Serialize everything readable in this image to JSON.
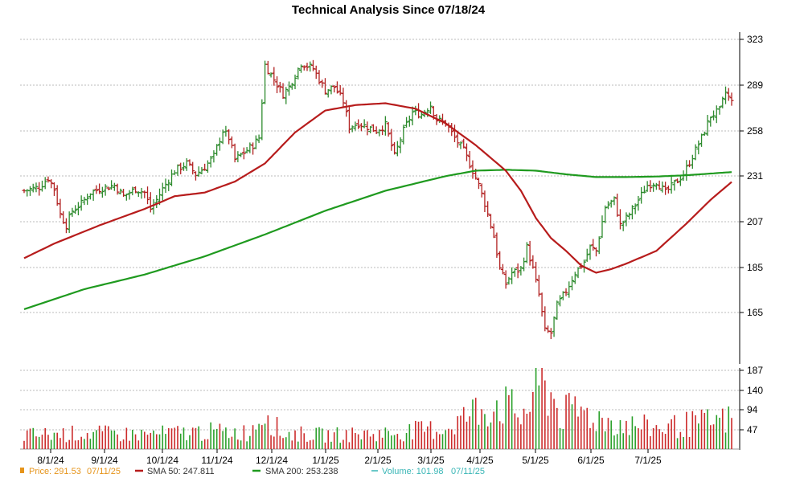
{
  "chart_data": {
    "type": "ohlc",
    "title": "Technical Analysis Since 07/18/24",
    "colors": {
      "up": "#2e8b2e",
      "down": "#b22222",
      "sma50": "#b71c1c",
      "sma200": "#1f9a1f",
      "volume": "#cc2b2b",
      "volume_alt": "#2aa02a",
      "grid": "#bbbbbb",
      "price_legend": "#e6941a",
      "volume_legend": "#39b6b6"
    },
    "price_axis": {
      "ticks": [
        323,
        289,
        258,
        231,
        207,
        185,
        165
      ],
      "ylim": [
        148,
        330
      ]
    },
    "volume_axis": {
      "ticks": [
        187,
        140,
        94,
        47
      ],
      "ylim": [
        0,
        187
      ]
    },
    "x_axis": {
      "tick_labels": [
        "8/1/24",
        "9/1/24",
        "10/1/24",
        "11/1/24",
        "12/1/24",
        "1/1/25",
        "2/1/25",
        "3/1/25",
        "4/1/25",
        "5/1/25",
        "6/1/25",
        "7/1/25"
      ]
    },
    "series": [
      {
        "name": "Price",
        "anchors": [
          [
            0,
            243
          ],
          [
            5,
            245
          ],
          [
            8,
            250
          ],
          [
            10,
            244
          ],
          [
            12,
            230
          ],
          [
            14,
            224
          ],
          [
            16,
            232
          ],
          [
            19,
            236
          ],
          [
            22,
            242
          ],
          [
            25,
            244
          ],
          [
            30,
            246
          ],
          [
            33,
            240
          ],
          [
            37,
            244
          ],
          [
            40,
            242
          ],
          [
            42,
            233
          ],
          [
            44,
            238
          ],
          [
            46,
            244
          ],
          [
            50,
            254
          ],
          [
            54,
            258
          ],
          [
            57,
            252
          ],
          [
            60,
            256
          ],
          [
            63,
            262
          ],
          [
            66,
            276
          ],
          [
            68,
            272
          ],
          [
            70,
            260
          ],
          [
            73,
            264
          ],
          [
            76,
            268
          ],
          [
            78,
            272
          ],
          [
            80,
            312
          ],
          [
            83,
            304
          ],
          [
            86,
            296
          ],
          [
            88,
            300
          ],
          [
            92,
            313
          ],
          [
            96,
            310
          ],
          [
            100,
            298
          ],
          [
            103,
            300
          ],
          [
            106,
            292
          ],
          [
            108,
            278
          ],
          [
            111,
            280
          ],
          [
            114,
            278
          ],
          [
            117,
            276
          ],
          [
            120,
            279
          ],
          [
            123,
            262
          ],
          [
            126,
            276
          ],
          [
            129,
            286
          ],
          [
            132,
            285
          ],
          [
            135,
            290
          ],
          [
            137,
            282
          ],
          [
            140,
            280
          ],
          [
            143,
            272
          ],
          [
            146,
            265
          ],
          [
            149,
            254
          ],
          [
            151,
            246
          ],
          [
            153,
            236
          ],
          [
            156,
            218
          ],
          [
            158,
            200
          ],
          [
            160,
            192
          ],
          [
            162,
            198
          ],
          [
            165,
            200
          ],
          [
            167,
            212
          ],
          [
            169,
            200
          ],
          [
            171,
            186
          ],
          [
            173,
            166
          ],
          [
            175,
            165
          ],
          [
            177,
            180
          ],
          [
            180,
            188
          ],
          [
            183,
            198
          ],
          [
            186,
            204
          ],
          [
            188,
            212
          ],
          [
            190,
            210
          ],
          [
            193,
            234
          ],
          [
            196,
            238
          ],
          [
            198,
            224
          ],
          [
            201,
            230
          ],
          [
            204,
            238
          ],
          [
            207,
            246
          ],
          [
            210,
            248
          ],
          [
            213,
            242
          ],
          [
            216,
            247
          ],
          [
            219,
            252
          ],
          [
            222,
            262
          ],
          [
            225,
            272
          ],
          [
            228,
            284
          ],
          [
            231,
            287
          ],
          [
            233,
            297
          ],
          [
            235,
            291.53
          ]
        ]
      },
      {
        "name": "SMA 50",
        "value": "247.811",
        "anchors": [
          [
            0,
            206
          ],
          [
            10,
            214
          ],
          [
            25,
            224
          ],
          [
            40,
            233
          ],
          [
            50,
            240
          ],
          [
            60,
            242
          ],
          [
            70,
            248
          ],
          [
            80,
            258
          ],
          [
            90,
            275
          ],
          [
            100,
            287
          ],
          [
            110,
            290
          ],
          [
            120,
            291
          ],
          [
            130,
            288
          ],
          [
            140,
            280
          ],
          [
            150,
            268
          ],
          [
            160,
            254
          ],
          [
            165,
            243
          ],
          [
            170,
            228
          ],
          [
            175,
            217
          ],
          [
            180,
            210
          ],
          [
            185,
            202
          ],
          [
            190,
            198
          ],
          [
            195,
            200
          ],
          [
            200,
            203
          ],
          [
            210,
            210
          ],
          [
            220,
            225
          ],
          [
            228,
            238
          ],
          [
            235,
            247.811
          ]
        ]
      },
      {
        "name": "SMA 200",
        "value": "253.238",
        "anchors": [
          [
            0,
            178
          ],
          [
            20,
            189
          ],
          [
            40,
            197
          ],
          [
            60,
            207
          ],
          [
            80,
            219
          ],
          [
            100,
            232
          ],
          [
            120,
            243
          ],
          [
            140,
            251
          ],
          [
            150,
            254
          ],
          [
            160,
            254.5
          ],
          [
            170,
            254
          ],
          [
            180,
            252
          ],
          [
            190,
            250.5
          ],
          [
            200,
            250.5
          ],
          [
            210,
            250.8
          ],
          [
            220,
            251.5
          ],
          [
            235,
            253.238
          ]
        ]
      }
    ],
    "volume": {
      "name": "Volume",
      "anchors": [
        [
          0,
          40
        ],
        [
          20,
          45
        ],
        [
          40,
          42
        ],
        [
          60,
          50
        ],
        [
          75,
          48
        ],
        [
          80,
          120
        ],
        [
          85,
          45
        ],
        [
          100,
          40
        ],
        [
          120,
          45
        ],
        [
          140,
          60
        ],
        [
          150,
          110
        ],
        [
          158,
          135
        ],
        [
          165,
          95
        ],
        [
          168,
          130
        ],
        [
          170,
          175
        ],
        [
          172,
          187
        ],
        [
          175,
          160
        ],
        [
          178,
          100
        ],
        [
          185,
          110
        ],
        [
          190,
          90
        ],
        [
          200,
          70
        ],
        [
          210,
          60
        ],
        [
          220,
          70
        ],
        [
          235,
          85
        ]
      ]
    }
  },
  "legend": {
    "price_label": "Price: 291.53",
    "price_date": "07/11/25",
    "sma50_label": "SMA 50: 247.811",
    "sma200_label": "SMA 200: 253.238",
    "volume_label": "Volume: 101.98",
    "volume_date": "07/11/25"
  }
}
